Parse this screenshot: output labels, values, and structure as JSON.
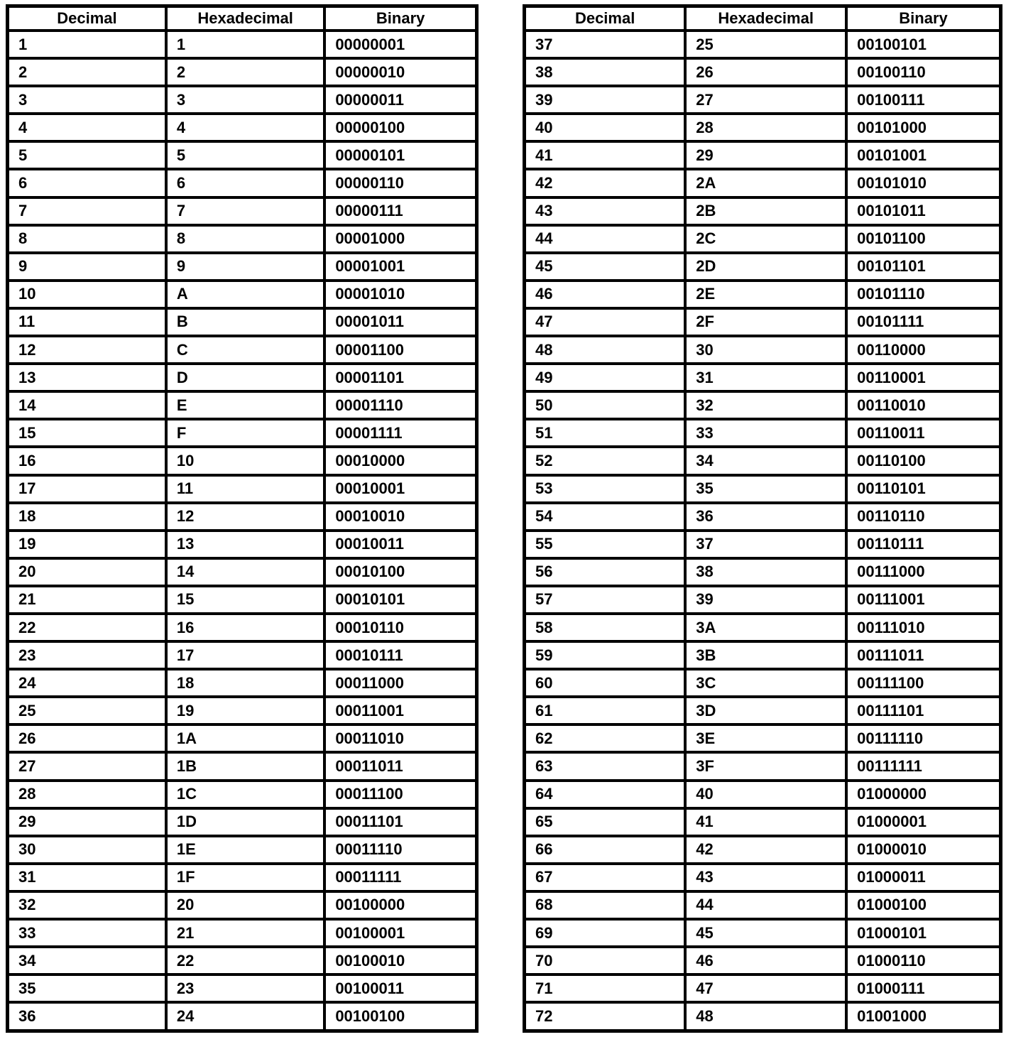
{
  "page": {
    "background_color": "#ffffff",
    "text_color": "#000000",
    "border_color": "#000000"
  },
  "tables": [
    {
      "name": "decimal-hex-binary-1-36",
      "headers": [
        "Decimal",
        "Hexadecimal",
        "Binary"
      ],
      "rows": [
        [
          "1",
          "1",
          "00000001"
        ],
        [
          "2",
          "2",
          "00000010"
        ],
        [
          "3",
          "3",
          "00000011"
        ],
        [
          "4",
          "4",
          "00000100"
        ],
        [
          "5",
          "5",
          "00000101"
        ],
        [
          "6",
          "6",
          "00000110"
        ],
        [
          "7",
          "7",
          "00000111"
        ],
        [
          "8",
          "8",
          "00001000"
        ],
        [
          "9",
          "9",
          "00001001"
        ],
        [
          "10",
          "A",
          "00001010"
        ],
        [
          "11",
          "B",
          "00001011"
        ],
        [
          "12",
          "C",
          "00001100"
        ],
        [
          "13",
          "D",
          "00001101"
        ],
        [
          "14",
          "E",
          "00001110"
        ],
        [
          "15",
          "F",
          "00001111"
        ],
        [
          "16",
          "10",
          "00010000"
        ],
        [
          "17",
          "11",
          "00010001"
        ],
        [
          "18",
          "12",
          "00010010"
        ],
        [
          "19",
          "13",
          "00010011"
        ],
        [
          "20",
          "14",
          "00010100"
        ],
        [
          "21",
          "15",
          "00010101"
        ],
        [
          "22",
          "16",
          "00010110"
        ],
        [
          "23",
          "17",
          "00010111"
        ],
        [
          "24",
          "18",
          "00011000"
        ],
        [
          "25",
          "19",
          "00011001"
        ],
        [
          "26",
          "1A",
          "00011010"
        ],
        [
          "27",
          "1B",
          "00011011"
        ],
        [
          "28",
          "1C",
          "00011100"
        ],
        [
          "29",
          "1D",
          "00011101"
        ],
        [
          "30",
          "1E",
          "00011110"
        ],
        [
          "31",
          "1F",
          "00011111"
        ],
        [
          "32",
          "20",
          "00100000"
        ],
        [
          "33",
          "21",
          "00100001"
        ],
        [
          "34",
          "22",
          "00100010"
        ],
        [
          "35",
          "23",
          "00100011"
        ],
        [
          "36",
          "24",
          "00100100"
        ]
      ]
    },
    {
      "name": "decimal-hex-binary-37-72",
      "headers": [
        "Decimal",
        "Hexadecimal",
        "Binary"
      ],
      "rows": [
        [
          "37",
          "25",
          "00100101"
        ],
        [
          "38",
          "26",
          "00100110"
        ],
        [
          "39",
          "27",
          "00100111"
        ],
        [
          "40",
          "28",
          "00101000"
        ],
        [
          "41",
          "29",
          "00101001"
        ],
        [
          "42",
          "2A",
          "00101010"
        ],
        [
          "43",
          "2B",
          "00101011"
        ],
        [
          "44",
          "2C",
          "00101100"
        ],
        [
          "45",
          "2D",
          "00101101"
        ],
        [
          "46",
          "2E",
          "00101110"
        ],
        [
          "47",
          "2F",
          "00101111"
        ],
        [
          "48",
          "30",
          "00110000"
        ],
        [
          "49",
          "31",
          "00110001"
        ],
        [
          "50",
          "32",
          "00110010"
        ],
        [
          "51",
          "33",
          "00110011"
        ],
        [
          "52",
          "34",
          "00110100"
        ],
        [
          "53",
          "35",
          "00110101"
        ],
        [
          "54",
          "36",
          "00110110"
        ],
        [
          "55",
          "37",
          "00110111"
        ],
        [
          "56",
          "38",
          "00111000"
        ],
        [
          "57",
          "39",
          "00111001"
        ],
        [
          "58",
          "3A",
          "00111010"
        ],
        [
          "59",
          "3B",
          "00111011"
        ],
        [
          "60",
          "3C",
          "00111100"
        ],
        [
          "61",
          "3D",
          "00111101"
        ],
        [
          "62",
          "3E",
          "00111110"
        ],
        [
          "63",
          "3F",
          "00111111"
        ],
        [
          "64",
          "40",
          "01000000"
        ],
        [
          "65",
          "41",
          "01000001"
        ],
        [
          "66",
          "42",
          "01000010"
        ],
        [
          "67",
          "43",
          "01000011"
        ],
        [
          "68",
          "44",
          "01000100"
        ],
        [
          "69",
          "45",
          "01000101"
        ],
        [
          "70",
          "46",
          "01000110"
        ],
        [
          "71",
          "47",
          "01000111"
        ],
        [
          "72",
          "48",
          "01001000"
        ]
      ]
    }
  ]
}
